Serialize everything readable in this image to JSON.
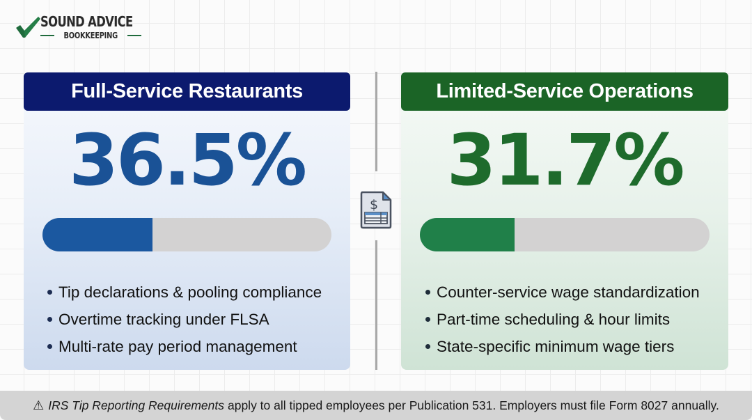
{
  "logo": {
    "title": "SOUND ADVICE",
    "subtitle": "BOOKKEEPING",
    "icon": "checkmark-icon",
    "accent_color": "#1f6b3c"
  },
  "left_panel": {
    "title": "Full-Service Restaurants",
    "stat": "36.5%",
    "progress_percent": 36.5,
    "header_color": "#0c1a6e",
    "accent_color": "#1b58a0",
    "bullets": [
      "Tip declarations & pooling compliance",
      "Overtime tracking under FLSA",
      "Multi-rate pay period management"
    ]
  },
  "right_panel": {
    "title": "Limited-Service Operations",
    "stat": "31.7%",
    "progress_percent": 31.7,
    "header_color": "#1b6426",
    "accent_color": "#208049",
    "bullets": [
      "Counter-service wage standardization",
      "Part-time scheduling & hour limits",
      "State-specific minimum wage tiers"
    ]
  },
  "divider": {
    "icon": "payroll-document-icon"
  },
  "footer": {
    "icon": "warning-icon",
    "icon_glyph": "⚠",
    "emphasis": "IRS Tip Reporting Requirements",
    "text": "apply to all tipped employees per Publication 531. Employers must file Form 8027 annually."
  },
  "chart_data": {
    "type": "bar",
    "title": "",
    "categories": [
      "Full-Service Restaurants",
      "Limited-Service Operations"
    ],
    "values": [
      36.5,
      31.7
    ],
    "unit": "%",
    "ylim": [
      0,
      100
    ],
    "orientation": "horizontal-progress"
  }
}
